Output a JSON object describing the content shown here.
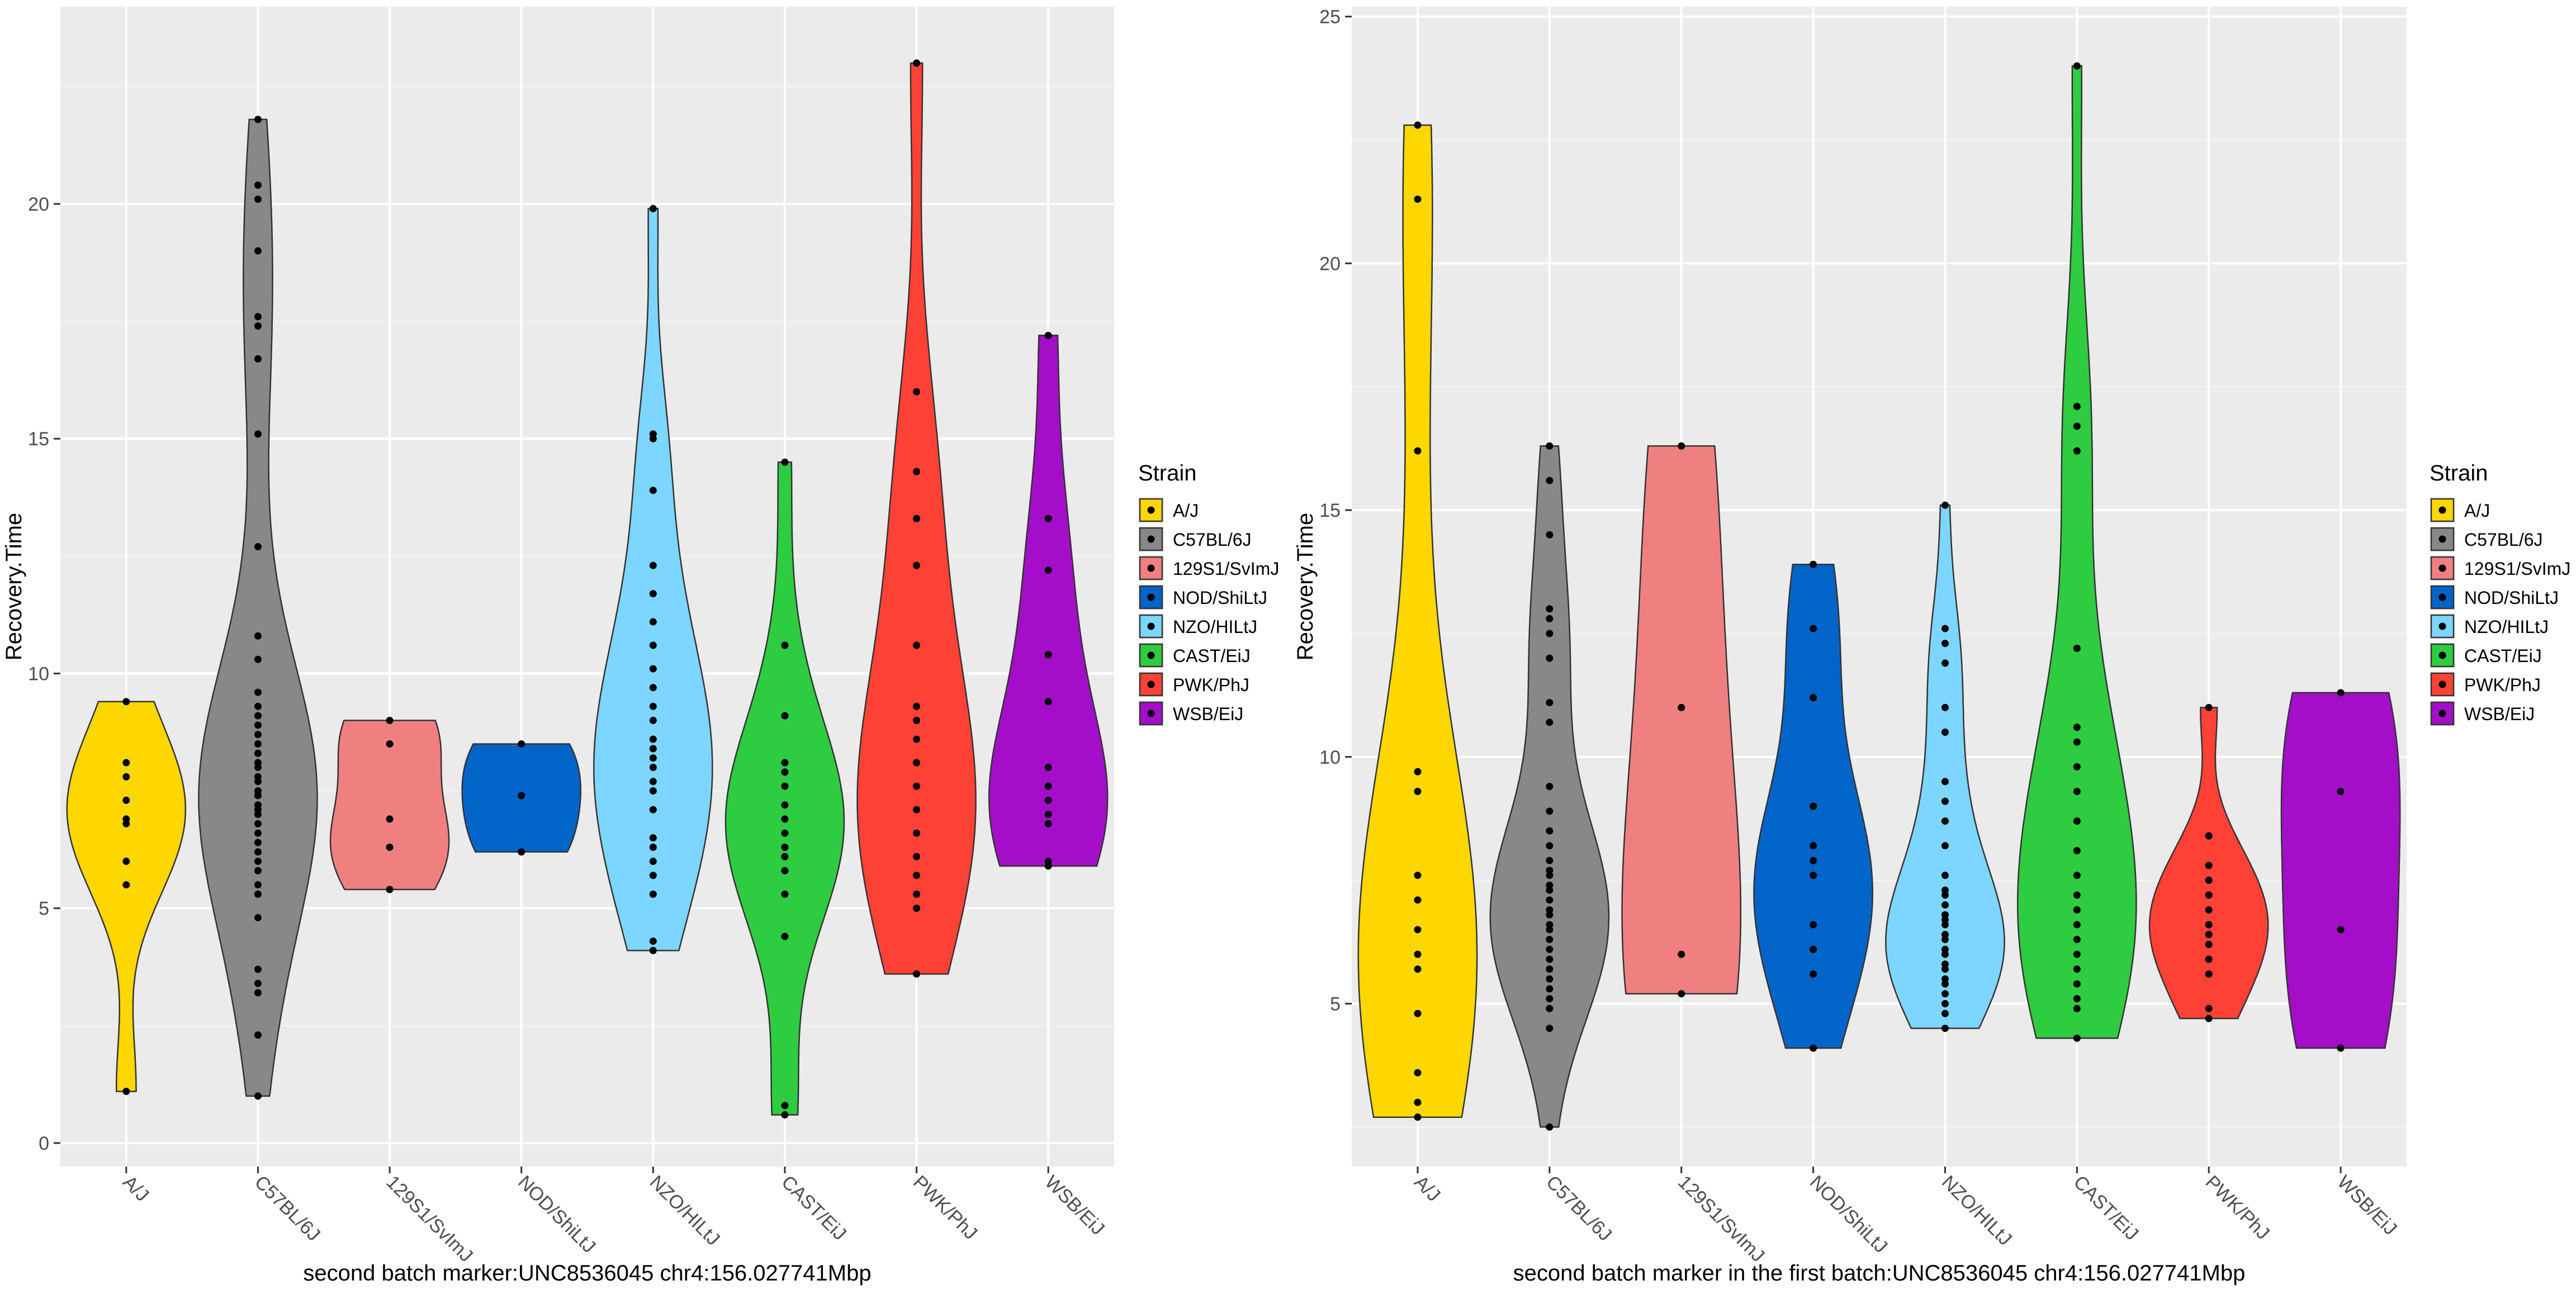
{
  "legend_title": "Strain",
  "colors": {
    "A/J": "#FFD700",
    "C57BL/6J": "#888888",
    "129S1/SvImJ": "#F08080",
    "NOD/ShiLtJ": "#0064C8",
    "NZO/HILtJ": "#7DD6FF",
    "CAST/EiJ": "#2ECC40",
    "PWK/PhJ": "#FF4136",
    "WSB/EiJ": "#A40EC8"
  },
  "chart_data": [
    {
      "type": "violin",
      "xlabel": "second batch marker:UNC8536045 chr4:156.027741Mbp",
      "ylabel": "Recovery.Time",
      "ylim": [
        -0.5,
        24.2
      ],
      "yticks": [
        0,
        5,
        10,
        15,
        20
      ],
      "legend_position": "right",
      "grid": true,
      "categories": [
        "A/J",
        "C57BL/6J",
        "129S1/SvImJ",
        "NOD/ShiLtJ",
        "NZO/HILtJ",
        "CAST/EiJ",
        "PWK/PhJ",
        "WSB/EiJ"
      ],
      "series": [
        {
          "name": "A/J",
          "points": [
            1.1,
            5.5,
            6.0,
            6.8,
            6.9,
            7.3,
            7.8,
            8.1,
            9.4
          ]
        },
        {
          "name": "C57BL/6J",
          "points": [
            1.0,
            2.3,
            3.2,
            3.4,
            3.7,
            4.8,
            5.3,
            5.5,
            5.8,
            6.0,
            6.2,
            6.4,
            6.6,
            6.8,
            7.0,
            7.1,
            7.2,
            7.4,
            7.5,
            7.7,
            7.8,
            8.0,
            8.1,
            8.3,
            8.5,
            8.7,
            8.9,
            9.1,
            9.3,
            9.6,
            10.3,
            10.8,
            12.7,
            15.1,
            16.7,
            17.4,
            17.6,
            19.0,
            20.1,
            20.4,
            21.8
          ]
        },
        {
          "name": "129S1/SvImJ",
          "points": [
            5.4,
            6.3,
            6.9,
            8.5,
            9.0
          ]
        },
        {
          "name": "NOD/ShiLtJ",
          "points": [
            6.2,
            7.4,
            8.5
          ]
        },
        {
          "name": "NZO/HILtJ",
          "points": [
            4.1,
            4.3,
            5.3,
            5.7,
            6.0,
            6.3,
            6.5,
            7.1,
            7.5,
            7.7,
            8.0,
            8.2,
            8.4,
            8.6,
            9.0,
            9.3,
            9.7,
            10.1,
            10.6,
            11.1,
            11.7,
            12.3,
            13.9,
            15.0,
            15.1,
            19.9
          ]
        },
        {
          "name": "CAST/EiJ",
          "points": [
            0.6,
            0.8,
            4.4,
            5.3,
            5.8,
            6.1,
            6.3,
            6.6,
            6.9,
            7.2,
            7.6,
            7.9,
            8.1,
            9.1,
            10.6,
            14.5
          ]
        },
        {
          "name": "PWK/PhJ",
          "points": [
            3.6,
            5.0,
            5.3,
            5.7,
            6.1,
            6.6,
            7.1,
            7.6,
            8.1,
            8.6,
            9.0,
            9.3,
            10.6,
            12.3,
            13.3,
            14.3,
            16.0,
            23.0
          ]
        },
        {
          "name": "WSB/EiJ",
          "points": [
            5.9,
            6.0,
            6.8,
            7.0,
            7.3,
            7.6,
            8.0,
            9.4,
            10.4,
            12.2,
            13.3,
            17.2
          ]
        }
      ]
    },
    {
      "type": "violin",
      "xlabel": "second batch marker in the first batch:UNC8536045 chr4:156.027741Mbp",
      "ylabel": "Recovery.Time",
      "ylim": [
        1.7,
        25.2
      ],
      "yticks": [
        5,
        10,
        15,
        20,
        25
      ],
      "legend_position": "right",
      "grid": true,
      "categories": [
        "A/J",
        "C57BL/6J",
        "129S1/SvImJ",
        "NOD/ShiLtJ",
        "NZO/HILtJ",
        "CAST/EiJ",
        "PWK/PhJ",
        "WSB/EiJ"
      ],
      "series": [
        {
          "name": "A/J",
          "points": [
            2.7,
            3.0,
            3.6,
            4.8,
            5.7,
            6.0,
            6.5,
            7.1,
            7.6,
            9.3,
            9.7,
            16.2,
            21.3,
            22.8
          ]
        },
        {
          "name": "C57BL/6J",
          "points": [
            2.5,
            4.5,
            4.9,
            5.1,
            5.3,
            5.5,
            5.7,
            5.9,
            6.1,
            6.3,
            6.5,
            6.6,
            6.8,
            6.9,
            7.1,
            7.3,
            7.4,
            7.6,
            7.7,
            7.9,
            8.2,
            8.5,
            8.9,
            9.4,
            10.7,
            11.1,
            12.0,
            12.5,
            12.8,
            13.0,
            14.5,
            15.6,
            16.3
          ]
        },
        {
          "name": "129S1/SvImJ",
          "points": [
            5.2,
            6.0,
            11.0,
            16.3
          ]
        },
        {
          "name": "NOD/ShiLtJ",
          "points": [
            4.1,
            5.6,
            6.1,
            6.6,
            7.6,
            7.9,
            8.2,
            9.0,
            11.2,
            12.6,
            13.9
          ]
        },
        {
          "name": "NZO/HILtJ",
          "points": [
            4.5,
            4.8,
            5.0,
            5.2,
            5.4,
            5.5,
            5.7,
            5.8,
            6.0,
            6.1,
            6.3,
            6.4,
            6.6,
            6.7,
            6.8,
            7.0,
            7.2,
            7.3,
            7.6,
            8.2,
            8.7,
            9.1,
            9.5,
            10.5,
            11.0,
            11.9,
            12.3,
            12.6,
            15.1
          ]
        },
        {
          "name": "CAST/EiJ",
          "points": [
            4.3,
            4.9,
            5.1,
            5.4,
            5.7,
            6.0,
            6.3,
            6.6,
            6.9,
            7.2,
            7.6,
            8.1,
            8.7,
            9.3,
            9.8,
            10.3,
            10.6,
            12.2,
            16.2,
            16.7,
            17.1,
            24.0
          ]
        },
        {
          "name": "PWK/PhJ",
          "points": [
            4.7,
            4.9,
            5.6,
            5.9,
            6.2,
            6.4,
            6.6,
            6.9,
            7.2,
            7.5,
            7.8,
            8.4,
            11.0
          ]
        },
        {
          "name": "WSB/EiJ",
          "points": [
            4.1,
            6.5,
            9.3,
            11.3
          ]
        }
      ]
    }
  ]
}
